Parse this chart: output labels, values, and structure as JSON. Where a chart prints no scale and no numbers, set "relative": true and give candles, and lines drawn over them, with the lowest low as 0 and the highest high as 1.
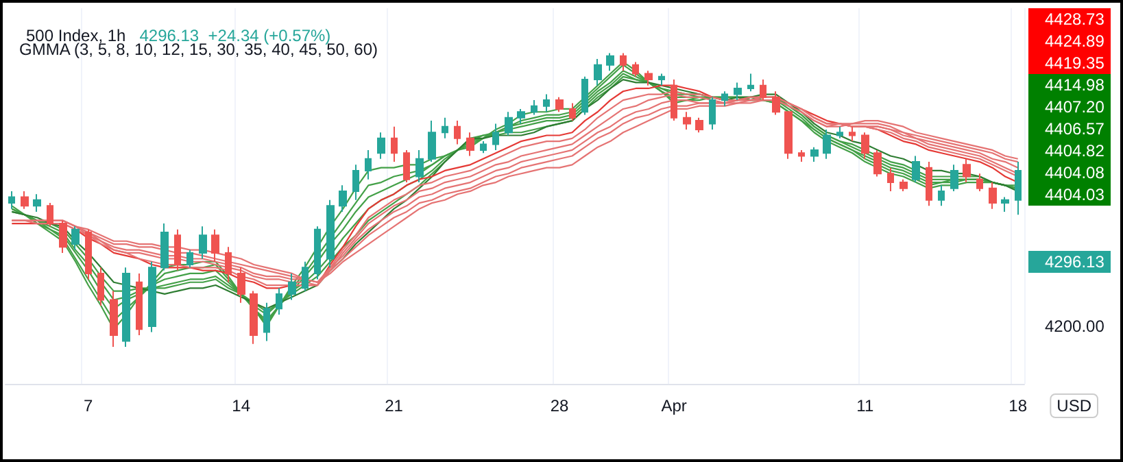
{
  "chart_data": {
    "type": "candlestick",
    "title": "500 Index, 1h",
    "subtitle": "4296.13  +24.34 (+0.57%)",
    "annotations": [
      "GMMA (3, 5, 8, 10, 12, 15, 30, 35, 40, 45, 50, 60)",
      "USD",
      "4428.73",
      "4424.89",
      "4419.35",
      "4414.98",
      "4407.20",
      "4406.57",
      "4404.82",
      "4404.08",
      "4404.03",
      "4296.13",
      "4200.00"
    ],
    "relative": true,
    "grid": "x",
    "categories": [
      null,
      null,
      null,
      null,
      null,
      null,
      "7",
      null,
      null,
      null,
      null,
      null,
      null,
      null,
      null,
      null,
      null,
      null,
      "14",
      null,
      null,
      null,
      null,
      null,
      null,
      null,
      null,
      null,
      null,
      null,
      "21",
      null,
      null,
      null,
      null,
      null,
      null,
      null,
      null,
      null,
      null,
      null,
      null,
      "28",
      null,
      null,
      null,
      null,
      null,
      null,
      null,
      null,
      "Apr",
      null,
      null,
      null,
      null,
      null,
      null,
      null,
      null,
      null,
      null,
      null,
      null,
      null,
      null,
      "11",
      null,
      null,
      null,
      null,
      null,
      null,
      null,
      null,
      null,
      null,
      null,
      "18"
    ],
    "ohlc": [
      [
        0.49,
        0.53,
        0.47,
        0.51
      ],
      [
        0.51,
        0.53,
        0.47,
        0.48
      ],
      [
        0.48,
        0.52,
        0.46,
        0.5
      ],
      [
        0.48,
        0.49,
        0.41,
        0.42
      ],
      [
        0.42,
        0.43,
        0.32,
        0.34
      ],
      [
        0.35,
        0.41,
        0.33,
        0.4
      ],
      [
        0.39,
        0.4,
        0.23,
        0.25
      ],
      [
        0.25,
        0.27,
        0.14,
        0.16
      ],
      [
        0.16,
        0.19,
        0.0,
        0.04
      ],
      [
        0.02,
        0.27,
        0.0,
        0.25
      ],
      [
        0.22,
        0.25,
        0.04,
        0.06
      ],
      [
        0.07,
        0.29,
        0.05,
        0.27
      ],
      [
        0.27,
        0.42,
        0.26,
        0.39
      ],
      [
        0.38,
        0.4,
        0.26,
        0.28
      ],
      [
        0.28,
        0.33,
        0.27,
        0.32
      ],
      [
        0.32,
        0.41,
        0.3,
        0.38
      ],
      [
        0.38,
        0.4,
        0.29,
        0.32
      ],
      [
        0.32,
        0.34,
        0.22,
        0.25
      ],
      [
        0.25,
        0.27,
        0.15,
        0.18
      ],
      [
        0.18,
        0.19,
        0.01,
        0.04
      ],
      [
        0.05,
        0.15,
        0.02,
        0.13
      ],
      [
        0.13,
        0.2,
        0.11,
        0.18
      ],
      [
        0.18,
        0.25,
        0.16,
        0.22
      ],
      [
        0.2,
        0.29,
        0.19,
        0.27
      ],
      [
        0.25,
        0.41,
        0.23,
        0.4
      ],
      [
        0.3,
        0.5,
        0.27,
        0.48
      ],
      [
        0.48,
        0.55,
        0.46,
        0.53
      ],
      [
        0.53,
        0.62,
        0.5,
        0.6
      ],
      [
        0.6,
        0.67,
        0.57,
        0.64
      ],
      [
        0.66,
        0.73,
        0.64,
        0.71
      ],
      [
        0.71,
        0.75,
        0.63,
        0.66
      ],
      [
        0.66,
        0.67,
        0.56,
        0.57
      ],
      [
        0.58,
        0.67,
        0.56,
        0.64
      ],
      [
        0.64,
        0.77,
        0.63,
        0.73
      ],
      [
        0.73,
        0.78,
        0.71,
        0.75
      ],
      [
        0.75,
        0.77,
        0.69,
        0.71
      ],
      [
        0.71,
        0.73,
        0.65,
        0.67
      ],
      [
        0.67,
        0.7,
        0.66,
        0.69
      ],
      [
        0.69,
        0.76,
        0.67,
        0.73
      ],
      [
        0.73,
        0.8,
        0.72,
        0.78
      ],
      [
        0.78,
        0.81,
        0.76,
        0.8
      ],
      [
        0.8,
        0.84,
        0.79,
        0.82
      ],
      [
        0.82,
        0.86,
        0.8,
        0.84
      ],
      [
        0.84,
        0.85,
        0.8,
        0.81
      ],
      [
        0.81,
        0.83,
        0.77,
        0.78
      ],
      [
        0.8,
        0.92,
        0.79,
        0.91
      ],
      [
        0.91,
        0.98,
        0.89,
        0.96
      ],
      [
        0.96,
        1.0,
        0.94,
        0.99
      ],
      [
        0.99,
        1.0,
        0.94,
        0.96
      ],
      [
        0.96,
        0.97,
        0.92,
        0.93
      ],
      [
        0.93,
        0.94,
        0.89,
        0.91
      ],
      [
        0.91,
        0.93,
        0.89,
        0.92
      ],
      [
        0.89,
        0.91,
        0.77,
        0.78
      ],
      [
        0.78,
        0.8,
        0.74,
        0.76
      ],
      [
        0.77,
        0.78,
        0.73,
        0.74
      ],
      [
        0.76,
        0.85,
        0.74,
        0.84
      ],
      [
        0.84,
        0.87,
        0.82,
        0.86
      ],
      [
        0.86,
        0.9,
        0.84,
        0.88
      ],
      [
        0.88,
        0.93,
        0.87,
        0.89
      ],
      [
        0.89,
        0.91,
        0.84,
        0.85
      ],
      [
        0.85,
        0.87,
        0.79,
        0.8
      ],
      [
        0.8,
        0.8,
        0.64,
        0.66
      ],
      [
        0.66,
        0.67,
        0.63,
        0.65
      ],
      [
        0.65,
        0.68,
        0.63,
        0.67
      ],
      [
        0.66,
        0.74,
        0.64,
        0.72
      ],
      [
        0.72,
        0.75,
        0.71,
        0.73
      ],
      [
        0.73,
        0.75,
        0.7,
        0.72
      ],
      [
        0.72,
        0.73,
        0.64,
        0.66
      ],
      [
        0.66,
        0.67,
        0.58,
        0.59
      ],
      [
        0.59,
        0.61,
        0.53,
        0.56
      ],
      [
        0.56,
        0.57,
        0.53,
        0.54
      ],
      [
        0.57,
        0.65,
        0.56,
        0.63
      ],
      [
        0.61,
        0.63,
        0.48,
        0.5
      ],
      [
        0.5,
        0.55,
        0.48,
        0.53
      ],
      [
        0.54,
        0.62,
        0.53,
        0.6
      ],
      [
        0.62,
        0.64,
        0.56,
        0.58
      ],
      [
        0.57,
        0.59,
        0.53,
        0.54
      ],
      [
        0.54,
        0.56,
        0.47,
        0.49
      ],
      [
        0.49,
        0.51,
        0.46,
        0.5
      ],
      [
        0.5,
        0.63,
        0.45,
        0.6
      ]
    ],
    "colors": [
      "#26a69a",
      "#ef5350",
      "#26a69a",
      "#ef5350",
      "#ef5350",
      "#26a69a",
      "#ef5350",
      "#ef5350",
      "#ef5350",
      "#26a69a",
      "#ef5350",
      "#26a69a",
      "#26a69a",
      "#ef5350",
      "#26a69a",
      "#26a69a",
      "#ef5350",
      "#ef5350",
      "#ef5350",
      "#ef5350",
      "#26a69a",
      "#26a69a",
      "#26a69a",
      "#26a69a",
      "#26a69a",
      "#26a69a",
      "#26a69a",
      "#26a69a",
      "#26a69a",
      "#26a69a",
      "#ef5350",
      "#ef5350",
      "#26a69a",
      "#26a69a",
      "#26a69a",
      "#ef5350",
      "#ef5350",
      "#26a69a",
      "#26a69a",
      "#26a69a",
      "#26a69a",
      "#26a69a",
      "#26a69a",
      "#ef5350",
      "#ef5350",
      "#26a69a",
      "#26a69a",
      "#26a69a",
      "#ef5350",
      "#ef5350",
      "#ef5350",
      "#26a69a",
      "#ef5350",
      "#ef5350",
      "#ef5350",
      "#26a69a",
      "#26a69a",
      "#26a69a",
      "#26a69a",
      "#ef5350",
      "#ef5350",
      "#ef5350",
      "#ef5350",
      "#26a69a",
      "#26a69a",
      "#26a69a",
      "#ef5350",
      "#ef5350",
      "#ef5350",
      "#ef5350",
      "#ef5350",
      "#26a69a",
      "#ef5350",
      "#26a69a",
      "#26a69a",
      "#ef5350",
      "#ef5350",
      "#ef5350",
      "#26a69a",
      "#26a69a"
    ],
    "series": [
      {
        "type": "line",
        "color": "#43a047",
        "values": [
          0.48,
          0.45,
          0.42,
          0.39,
          0.36,
          0.29,
          0.21,
          0.14,
          0.06,
          0.11,
          0.17,
          0.22,
          0.27,
          0.28,
          0.28,
          0.29,
          0.29,
          0.24,
          0.18,
          0.13,
          0.07,
          0.14,
          0.21,
          0.27,
          0.34,
          0.41,
          0.47,
          0.54,
          0.6,
          0.61,
          0.61,
          0.62,
          0.62,
          0.64,
          0.65,
          0.67,
          0.68,
          0.71,
          0.74,
          0.76,
          0.79,
          0.8,
          0.8,
          0.81,
          0.81,
          0.85,
          0.89,
          0.93,
          0.97,
          0.94,
          0.9,
          0.87,
          0.83,
          0.84,
          0.84,
          0.85,
          0.85,
          0.85,
          0.84,
          0.84,
          0.83,
          0.8,
          0.77,
          0.73,
          0.7,
          0.68,
          0.66,
          0.63,
          0.61,
          0.59,
          0.58,
          0.56,
          0.54,
          0.55,
          0.55,
          0.56,
          0.56,
          0.56,
          0.55,
          0.55
        ]
      },
      {
        "type": "line",
        "color": "#43a047",
        "values": [
          0.47,
          0.45,
          0.42,
          0.4,
          0.37,
          0.3,
          0.23,
          0.16,
          0.09,
          0.13,
          0.17,
          0.21,
          0.25,
          0.26,
          0.27,
          0.27,
          0.28,
          0.23,
          0.18,
          0.13,
          0.08,
          0.14,
          0.2,
          0.25,
          0.31,
          0.37,
          0.43,
          0.49,
          0.55,
          0.56,
          0.58,
          0.59,
          0.6,
          0.62,
          0.65,
          0.67,
          0.69,
          0.71,
          0.73,
          0.75,
          0.77,
          0.78,
          0.79,
          0.79,
          0.8,
          0.84,
          0.88,
          0.92,
          0.96,
          0.93,
          0.9,
          0.87,
          0.84,
          0.84,
          0.85,
          0.85,
          0.85,
          0.85,
          0.84,
          0.84,
          0.83,
          0.8,
          0.77,
          0.74,
          0.71,
          0.69,
          0.67,
          0.64,
          0.62,
          0.6,
          0.59,
          0.57,
          0.55,
          0.56,
          0.56,
          0.57,
          0.57,
          0.56,
          0.55,
          0.54
        ]
      },
      {
        "type": "line",
        "color": "#43a047",
        "values": [
          0.47,
          0.45,
          0.43,
          0.4,
          0.38,
          0.32,
          0.26,
          0.19,
          0.13,
          0.16,
          0.18,
          0.21,
          0.23,
          0.24,
          0.25,
          0.25,
          0.26,
          0.22,
          0.18,
          0.13,
          0.09,
          0.14,
          0.19,
          0.24,
          0.29,
          0.35,
          0.4,
          0.46,
          0.51,
          0.53,
          0.55,
          0.57,
          0.59,
          0.62,
          0.65,
          0.67,
          0.7,
          0.72,
          0.73,
          0.75,
          0.76,
          0.77,
          0.78,
          0.78,
          0.79,
          0.83,
          0.87,
          0.9,
          0.94,
          0.92,
          0.9,
          0.87,
          0.85,
          0.85,
          0.85,
          0.85,
          0.85,
          0.85,
          0.85,
          0.84,
          0.84,
          0.81,
          0.78,
          0.74,
          0.71,
          0.69,
          0.67,
          0.65,
          0.63,
          0.61,
          0.6,
          0.58,
          0.56,
          0.56,
          0.57,
          0.57,
          0.57,
          0.56,
          0.55,
          0.54
        ]
      },
      {
        "type": "line",
        "color": "#43a047",
        "values": [
          0.47,
          0.45,
          0.43,
          0.41,
          0.39,
          0.33,
          0.28,
          0.22,
          0.16,
          0.17,
          0.19,
          0.2,
          0.21,
          0.22,
          0.23,
          0.23,
          0.24,
          0.21,
          0.18,
          0.14,
          0.11,
          0.15,
          0.19,
          0.22,
          0.26,
          0.31,
          0.37,
          0.42,
          0.47,
          0.5,
          0.52,
          0.55,
          0.57,
          0.6,
          0.64,
          0.67,
          0.7,
          0.71,
          0.73,
          0.74,
          0.75,
          0.76,
          0.77,
          0.77,
          0.78,
          0.82,
          0.86,
          0.89,
          0.93,
          0.91,
          0.9,
          0.88,
          0.86,
          0.86,
          0.85,
          0.85,
          0.85,
          0.85,
          0.85,
          0.85,
          0.85,
          0.82,
          0.79,
          0.75,
          0.72,
          0.7,
          0.68,
          0.66,
          0.64,
          0.62,
          0.61,
          0.59,
          0.57,
          0.57,
          0.57,
          0.57,
          0.57,
          0.56,
          0.55,
          0.54
        ]
      },
      {
        "type": "line",
        "color": "#43a047",
        "values": [
          0.46,
          0.45,
          0.43,
          0.42,
          0.4,
          0.35,
          0.3,
          0.24,
          0.19,
          0.19,
          0.2,
          0.2,
          0.2,
          0.21,
          0.22,
          0.22,
          0.23,
          0.2,
          0.18,
          0.15,
          0.12,
          0.15,
          0.18,
          0.21,
          0.24,
          0.29,
          0.34,
          0.38,
          0.43,
          0.46,
          0.49,
          0.52,
          0.55,
          0.59,
          0.63,
          0.67,
          0.71,
          0.72,
          0.72,
          0.73,
          0.73,
          0.74,
          0.75,
          0.76,
          0.77,
          0.81,
          0.85,
          0.88,
          0.92,
          0.91,
          0.9,
          0.88,
          0.87,
          0.86,
          0.86,
          0.85,
          0.84,
          0.84,
          0.85,
          0.85,
          0.85,
          0.82,
          0.79,
          0.75,
          0.72,
          0.7,
          0.69,
          0.67,
          0.65,
          0.63,
          0.62,
          0.6,
          0.58,
          0.58,
          0.58,
          0.58,
          0.58,
          0.56,
          0.55,
          0.53
        ]
      },
      {
        "type": "line",
        "color": "#2e7d32",
        "values": [
          0.46,
          0.45,
          0.44,
          0.42,
          0.41,
          0.36,
          0.32,
          0.27,
          0.22,
          0.21,
          0.2,
          0.19,
          0.18,
          0.19,
          0.2,
          0.2,
          0.21,
          0.19,
          0.17,
          0.15,
          0.13,
          0.15,
          0.17,
          0.19,
          0.21,
          0.26,
          0.3,
          0.35,
          0.39,
          0.43,
          0.47,
          0.5,
          0.54,
          0.58,
          0.63,
          0.67,
          0.71,
          0.71,
          0.72,
          0.72,
          0.72,
          0.73,
          0.75,
          0.76,
          0.77,
          0.81,
          0.84,
          0.88,
          0.91,
          0.9,
          0.9,
          0.89,
          0.88,
          0.87,
          0.86,
          0.85,
          0.84,
          0.85,
          0.85,
          0.86,
          0.86,
          0.83,
          0.8,
          0.76,
          0.73,
          0.72,
          0.7,
          0.69,
          0.67,
          0.65,
          0.64,
          0.62,
          0.6,
          0.6,
          0.59,
          0.59,
          0.58,
          0.56,
          0.55,
          0.53
        ]
      },
      {
        "type": "line",
        "color": "#e53935",
        "values": [
          0.42,
          0.42,
          0.42,
          0.42,
          0.42,
          0.4,
          0.37,
          0.35,
          0.32,
          0.31,
          0.3,
          0.28,
          0.27,
          0.27,
          0.27,
          0.26,
          0.26,
          0.25,
          0.23,
          0.22,
          0.2,
          0.2,
          0.21,
          0.21,
          0.21,
          0.28,
          0.34,
          0.41,
          0.47,
          0.5,
          0.52,
          0.55,
          0.57,
          0.58,
          0.6,
          0.61,
          0.62,
          0.64,
          0.66,
          0.68,
          0.7,
          0.71,
          0.72,
          0.72,
          0.73,
          0.77,
          0.8,
          0.84,
          0.87,
          0.88,
          0.88,
          0.89,
          0.89,
          0.88,
          0.87,
          0.85,
          0.84,
          0.84,
          0.85,
          0.85,
          0.85,
          0.83,
          0.81,
          0.79,
          0.77,
          0.76,
          0.75,
          0.75,
          0.74,
          0.72,
          0.7,
          0.69,
          0.67,
          0.66,
          0.65,
          0.64,
          0.63,
          0.61,
          0.58,
          0.56
        ]
      },
      {
        "type": "line",
        "color": "#e57373",
        "values": [
          0.43,
          0.43,
          0.42,
          0.42,
          0.42,
          0.4,
          0.38,
          0.35,
          0.33,
          0.32,
          0.3,
          0.29,
          0.28,
          0.28,
          0.27,
          0.27,
          0.27,
          0.26,
          0.24,
          0.23,
          0.21,
          0.21,
          0.21,
          0.21,
          0.21,
          0.27,
          0.33,
          0.38,
          0.44,
          0.47,
          0.5,
          0.52,
          0.55,
          0.56,
          0.58,
          0.59,
          0.6,
          0.62,
          0.64,
          0.66,
          0.68,
          0.69,
          0.7,
          0.7,
          0.71,
          0.74,
          0.78,
          0.81,
          0.84,
          0.85,
          0.86,
          0.86,
          0.87,
          0.86,
          0.86,
          0.85,
          0.84,
          0.84,
          0.85,
          0.85,
          0.85,
          0.83,
          0.81,
          0.78,
          0.76,
          0.76,
          0.75,
          0.75,
          0.74,
          0.73,
          0.71,
          0.7,
          0.68,
          0.67,
          0.66,
          0.65,
          0.64,
          0.62,
          0.6,
          0.58
        ]
      },
      {
        "type": "line",
        "color": "#e57373",
        "values": [
          0.43,
          0.43,
          0.43,
          0.43,
          0.43,
          0.41,
          0.38,
          0.36,
          0.33,
          0.32,
          0.32,
          0.31,
          0.3,
          0.3,
          0.29,
          0.29,
          0.28,
          0.27,
          0.26,
          0.24,
          0.23,
          0.23,
          0.22,
          0.22,
          0.21,
          0.26,
          0.32,
          0.37,
          0.42,
          0.45,
          0.48,
          0.5,
          0.53,
          0.54,
          0.56,
          0.57,
          0.58,
          0.6,
          0.62,
          0.63,
          0.65,
          0.66,
          0.67,
          0.68,
          0.69,
          0.72,
          0.75,
          0.78,
          0.81,
          0.82,
          0.84,
          0.85,
          0.86,
          0.85,
          0.85,
          0.84,
          0.83,
          0.84,
          0.84,
          0.85,
          0.85,
          0.83,
          0.81,
          0.78,
          0.76,
          0.76,
          0.75,
          0.75,
          0.75,
          0.74,
          0.72,
          0.71,
          0.69,
          0.68,
          0.67,
          0.66,
          0.65,
          0.63,
          0.61,
          0.59
        ]
      },
      {
        "type": "line",
        "color": "#e57373",
        "values": [
          0.43,
          0.43,
          0.43,
          0.43,
          0.43,
          0.41,
          0.39,
          0.36,
          0.34,
          0.33,
          0.33,
          0.32,
          0.31,
          0.31,
          0.3,
          0.3,
          0.29,
          0.28,
          0.27,
          0.25,
          0.24,
          0.24,
          0.23,
          0.23,
          0.22,
          0.27,
          0.31,
          0.36,
          0.4,
          0.43,
          0.46,
          0.48,
          0.51,
          0.52,
          0.54,
          0.55,
          0.56,
          0.58,
          0.6,
          0.61,
          0.63,
          0.64,
          0.65,
          0.66,
          0.67,
          0.7,
          0.73,
          0.75,
          0.78,
          0.8,
          0.81,
          0.83,
          0.84,
          0.84,
          0.83,
          0.83,
          0.83,
          0.84,
          0.84,
          0.85,
          0.85,
          0.83,
          0.81,
          0.78,
          0.76,
          0.76,
          0.75,
          0.75,
          0.75,
          0.74,
          0.73,
          0.71,
          0.7,
          0.69,
          0.68,
          0.67,
          0.66,
          0.64,
          0.63,
          0.61
        ]
      },
      {
        "type": "line",
        "color": "#e57373",
        "values": [
          0.43,
          0.43,
          0.43,
          0.43,
          0.43,
          0.41,
          0.39,
          0.37,
          0.35,
          0.35,
          0.34,
          0.34,
          0.33,
          0.32,
          0.32,
          0.31,
          0.3,
          0.29,
          0.28,
          0.27,
          0.26,
          0.25,
          0.24,
          0.23,
          0.22,
          0.26,
          0.3,
          0.34,
          0.38,
          0.41,
          0.44,
          0.46,
          0.49,
          0.5,
          0.52,
          0.53,
          0.54,
          0.56,
          0.58,
          0.59,
          0.61,
          0.62,
          0.63,
          0.64,
          0.65,
          0.68,
          0.71,
          0.73,
          0.76,
          0.78,
          0.79,
          0.81,
          0.82,
          0.82,
          0.83,
          0.83,
          0.83,
          0.83,
          0.84,
          0.84,
          0.84,
          0.82,
          0.8,
          0.77,
          0.75,
          0.75,
          0.76,
          0.76,
          0.76,
          0.75,
          0.73,
          0.72,
          0.71,
          0.7,
          0.69,
          0.68,
          0.67,
          0.66,
          0.64,
          0.63
        ]
      },
      {
        "type": "line",
        "color": "#e57373",
        "values": [
          0.43,
          0.43,
          0.43,
          0.43,
          0.43,
          0.41,
          0.4,
          0.38,
          0.36,
          0.36,
          0.35,
          0.35,
          0.34,
          0.34,
          0.33,
          0.33,
          0.32,
          0.31,
          0.3,
          0.28,
          0.27,
          0.26,
          0.25,
          0.23,
          0.22,
          0.25,
          0.29,
          0.32,
          0.35,
          0.38,
          0.41,
          0.44,
          0.47,
          0.49,
          0.5,
          0.52,
          0.53,
          0.55,
          0.56,
          0.58,
          0.59,
          0.6,
          0.61,
          0.61,
          0.62,
          0.65,
          0.68,
          0.7,
          0.73,
          0.75,
          0.77,
          0.79,
          0.81,
          0.81,
          0.82,
          0.82,
          0.82,
          0.83,
          0.83,
          0.84,
          0.84,
          0.82,
          0.8,
          0.77,
          0.75,
          0.76,
          0.76,
          0.77,
          0.77,
          0.76,
          0.75,
          0.73,
          0.72,
          0.71,
          0.7,
          0.69,
          0.68,
          0.67,
          0.65,
          0.64
        ]
      }
    ]
  }
}
